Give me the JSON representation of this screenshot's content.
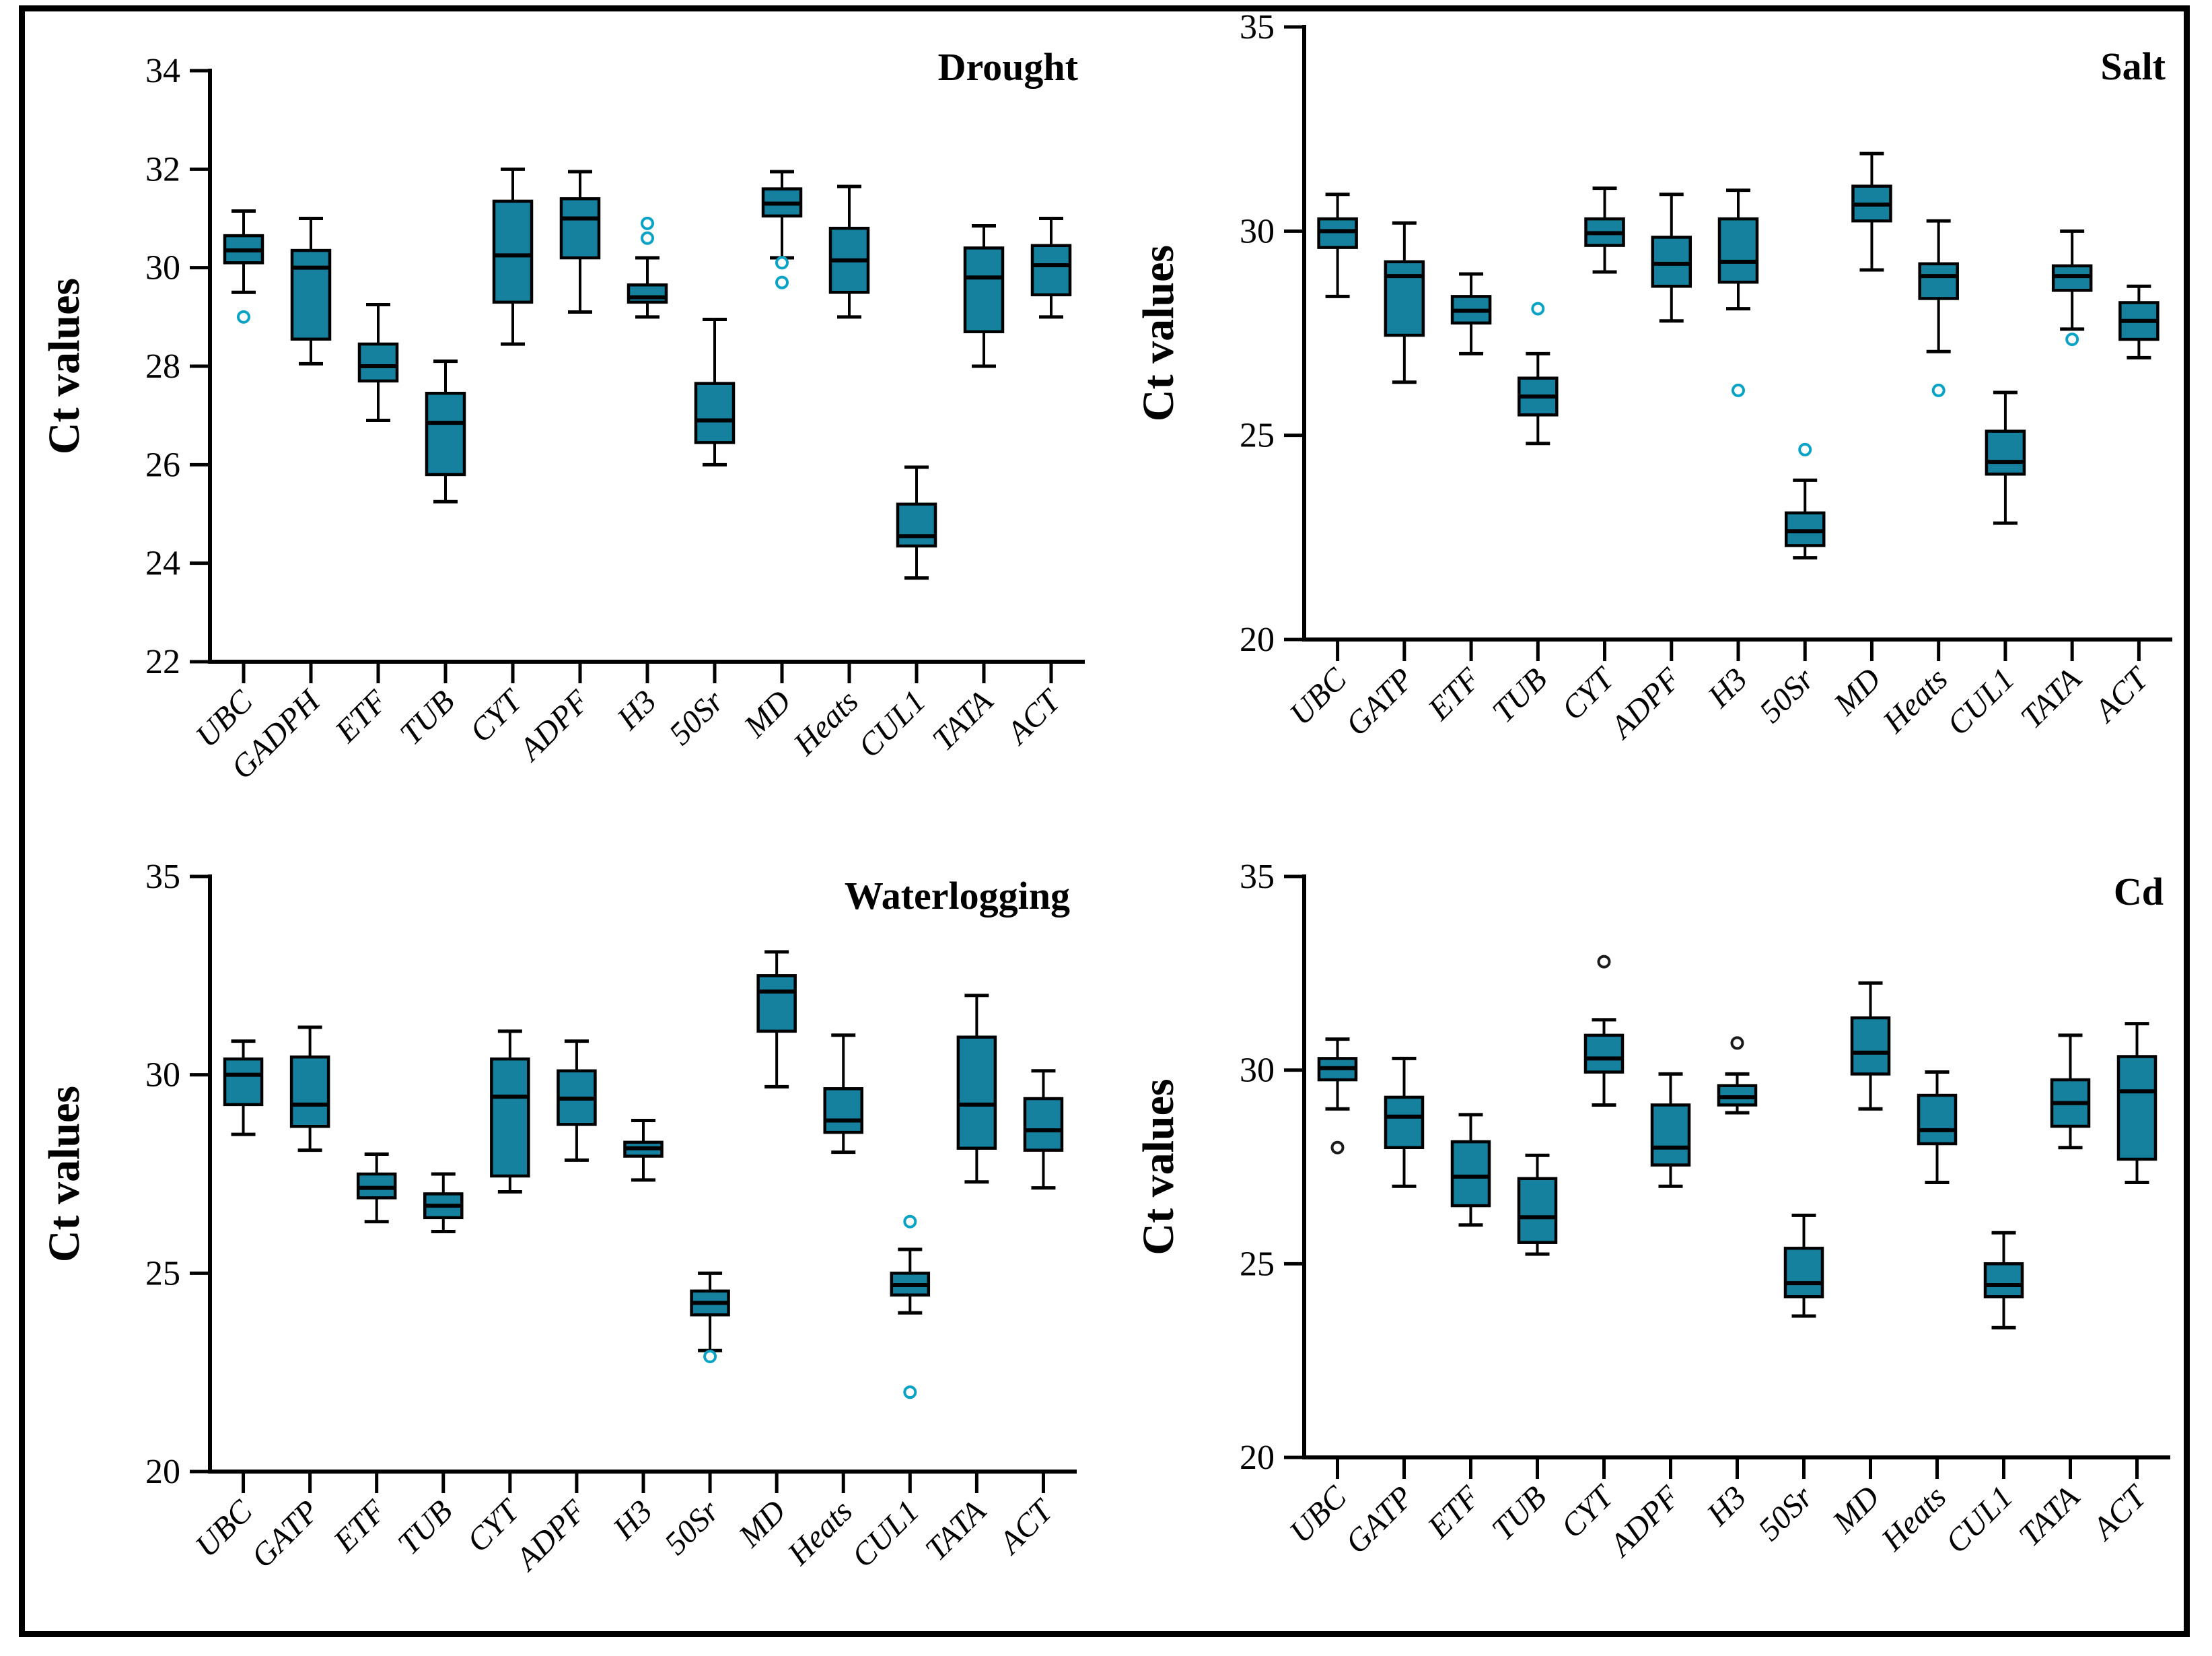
{
  "figure": {
    "description": "Four-panel box plot figure of qPCR Ct values for 13 candidate reference genes under four stress treatments",
    "background_color": "#ffffff",
    "border_color": "#000000",
    "box_fill": "#15819f",
    "box_stroke": "#000000",
    "outlier_teal": "#0aa3c6",
    "outlier_black": "#1a1a1a"
  },
  "chart_data": [
    {
      "id": "drought",
      "type": "box",
      "title": "Drought",
      "ylabel": "Ct values",
      "ylim": [
        22,
        34
      ],
      "yticks": [
        22,
        24,
        26,
        28,
        30,
        32,
        34
      ],
      "grid": false,
      "outlier_color": "teal",
      "categories": [
        "UBC",
        "GADPH",
        "ETF",
        "TUB",
        "CYT",
        "ADPF",
        "H3",
        "50Sr",
        "MD",
        "Heats",
        "CUL1",
        "TATA",
        "ACT"
      ],
      "stats": [
        {
          "lo": 29.5,
          "q1": 30.1,
          "med": 30.35,
          "q3": 30.65,
          "hi": 31.15,
          "out": [
            29.0
          ]
        },
        {
          "lo": 28.05,
          "q1": 28.55,
          "med": 30.0,
          "q3": 30.35,
          "hi": 31.0,
          "out": []
        },
        {
          "lo": 26.9,
          "q1": 27.7,
          "med": 28.0,
          "q3": 28.45,
          "hi": 29.25,
          "out": []
        },
        {
          "lo": 25.25,
          "q1": 25.8,
          "med": 26.85,
          "q3": 27.45,
          "hi": 28.1,
          "out": []
        },
        {
          "lo": 28.45,
          "q1": 29.3,
          "med": 30.25,
          "q3": 31.35,
          "hi": 32.0,
          "out": []
        },
        {
          "lo": 29.1,
          "q1": 30.2,
          "med": 31.0,
          "q3": 31.4,
          "hi": 31.95,
          "out": []
        },
        {
          "lo": 29.0,
          "q1": 29.3,
          "med": 29.4,
          "q3": 29.65,
          "hi": 30.2,
          "out": [
            30.6,
            30.9
          ]
        },
        {
          "lo": 26.0,
          "q1": 26.45,
          "med": 26.9,
          "q3": 27.65,
          "hi": 28.95,
          "out": []
        },
        {
          "lo": 30.2,
          "q1": 31.05,
          "med": 31.3,
          "q3": 31.6,
          "hi": 31.95,
          "out": [
            30.1,
            29.7
          ]
        },
        {
          "lo": 29.0,
          "q1": 29.5,
          "med": 30.15,
          "q3": 30.8,
          "hi": 31.65,
          "out": []
        },
        {
          "lo": 23.7,
          "q1": 24.35,
          "med": 24.55,
          "q3": 25.2,
          "hi": 25.95,
          "out": []
        },
        {
          "lo": 28.0,
          "q1": 28.7,
          "med": 29.8,
          "q3": 30.4,
          "hi": 30.85,
          "out": []
        },
        {
          "lo": 29.0,
          "q1": 29.45,
          "med": 30.05,
          "q3": 30.45,
          "hi": 31.0,
          "out": []
        }
      ]
    },
    {
      "id": "salt",
      "type": "box",
      "title": "Salt",
      "ylabel": "Ct values",
      "ylim": [
        20,
        35
      ],
      "yticks": [
        20,
        25,
        30,
        35
      ],
      "grid": false,
      "outlier_color": "teal",
      "categories": [
        "UBC",
        "GATP",
        "ETF",
        "TUB",
        "CYT",
        "ADPF",
        "H3",
        "50Sr",
        "MD",
        "Heats",
        "CUL1",
        "TATA",
        "ACT"
      ],
      "stats": [
        {
          "lo": 28.4,
          "q1": 29.6,
          "med": 30.0,
          "q3": 30.3,
          "hi": 30.9,
          "out": []
        },
        {
          "lo": 26.3,
          "q1": 27.45,
          "med": 28.9,
          "q3": 29.25,
          "hi": 30.2,
          "out": []
        },
        {
          "lo": 27.0,
          "q1": 27.75,
          "med": 28.05,
          "q3": 28.4,
          "hi": 28.95,
          "out": []
        },
        {
          "lo": 24.8,
          "q1": 25.5,
          "med": 25.95,
          "q3": 26.4,
          "hi": 27.0,
          "out": [
            28.1
          ]
        },
        {
          "lo": 29.0,
          "q1": 29.65,
          "med": 29.95,
          "q3": 30.3,
          "hi": 31.05,
          "out": []
        },
        {
          "lo": 27.8,
          "q1": 28.65,
          "med": 29.2,
          "q3": 29.85,
          "hi": 30.9,
          "out": []
        },
        {
          "lo": 28.1,
          "q1": 28.75,
          "med": 29.25,
          "q3": 30.3,
          "hi": 31.0,
          "out": [
            26.1
          ]
        },
        {
          "lo": 22.0,
          "q1": 22.3,
          "med": 22.65,
          "q3": 23.1,
          "hi": 23.9,
          "out": [
            24.65
          ]
        },
        {
          "lo": 29.05,
          "q1": 30.25,
          "med": 30.65,
          "q3": 31.1,
          "hi": 31.9,
          "out": []
        },
        {
          "lo": 27.05,
          "q1": 28.35,
          "med": 28.9,
          "q3": 29.2,
          "hi": 30.25,
          "out": [
            26.1
          ]
        },
        {
          "lo": 22.85,
          "q1": 24.05,
          "med": 24.35,
          "q3": 25.1,
          "hi": 26.05,
          "out": []
        },
        {
          "lo": 27.6,
          "q1": 28.55,
          "med": 28.9,
          "q3": 29.15,
          "hi": 30.0,
          "out": [
            27.35
          ]
        },
        {
          "lo": 26.9,
          "q1": 27.35,
          "med": 27.8,
          "q3": 28.25,
          "hi": 28.65,
          "out": []
        }
      ]
    },
    {
      "id": "waterlogging",
      "type": "box",
      "title": "Waterlogging",
      "ylabel": "Ct values",
      "ylim": [
        20,
        35
      ],
      "yticks": [
        20,
        25,
        30,
        35
      ],
      "grid": false,
      "outlier_color": "teal",
      "categories": [
        "UBC",
        "GATP",
        "ETF",
        "TUB",
        "CYT",
        "ADPF",
        "H3",
        "50Sr",
        "MD",
        "Heats",
        "CUL1",
        "TATA",
        "ACT"
      ],
      "stats": [
        {
          "lo": 28.5,
          "q1": 29.25,
          "med": 30.0,
          "q3": 30.4,
          "hi": 30.85,
          "out": []
        },
        {
          "lo": 28.1,
          "q1": 28.7,
          "med": 29.25,
          "q3": 30.45,
          "hi": 31.2,
          "out": []
        },
        {
          "lo": 26.3,
          "q1": 26.9,
          "med": 27.15,
          "q3": 27.5,
          "hi": 28.0,
          "out": []
        },
        {
          "lo": 26.05,
          "q1": 26.4,
          "med": 26.7,
          "q3": 27.0,
          "hi": 27.5,
          "out": []
        },
        {
          "lo": 27.05,
          "q1": 27.45,
          "med": 29.45,
          "q3": 30.4,
          "hi": 31.1,
          "out": []
        },
        {
          "lo": 27.85,
          "q1": 28.75,
          "med": 29.4,
          "q3": 30.1,
          "hi": 30.85,
          "out": []
        },
        {
          "lo": 27.35,
          "q1": 27.95,
          "med": 28.15,
          "q3": 28.3,
          "hi": 28.85,
          "out": []
        },
        {
          "lo": 23.05,
          "q1": 23.95,
          "med": 24.25,
          "q3": 24.55,
          "hi": 25.0,
          "out": [
            22.9
          ]
        },
        {
          "lo": 29.7,
          "q1": 31.1,
          "med": 32.1,
          "q3": 32.5,
          "hi": 33.1,
          "out": []
        },
        {
          "lo": 28.05,
          "q1": 28.55,
          "med": 28.85,
          "q3": 29.65,
          "hi": 31.0,
          "out": []
        },
        {
          "lo": 24.0,
          "q1": 24.45,
          "med": 24.7,
          "q3": 25.0,
          "hi": 25.6,
          "out": [
            26.3,
            22.0
          ]
        },
        {
          "lo": 27.3,
          "q1": 28.15,
          "med": 29.25,
          "q3": 30.95,
          "hi": 32.0,
          "out": []
        },
        {
          "lo": 27.15,
          "q1": 28.1,
          "med": 28.6,
          "q3": 29.4,
          "hi": 30.1,
          "out": []
        }
      ]
    },
    {
      "id": "cd",
      "type": "box",
      "title": "Cd",
      "ylabel": "Ct values",
      "ylim": [
        20,
        35
      ],
      "yticks": [
        20,
        25,
        30,
        35
      ],
      "grid": false,
      "outlier_color": "black",
      "categories": [
        "UBC",
        "GATP",
        "ETF",
        "TUB",
        "CYT",
        "ADPF",
        "H3",
        "50Sr",
        "MD",
        "Heats",
        "CUL1",
        "TATA",
        "ACT"
      ],
      "stats": [
        {
          "lo": 29.0,
          "q1": 29.75,
          "med": 30.05,
          "q3": 30.3,
          "hi": 30.8,
          "out": [
            28.0
          ]
        },
        {
          "lo": 27.0,
          "q1": 28.0,
          "med": 28.8,
          "q3": 29.3,
          "hi": 30.3,
          "out": []
        },
        {
          "lo": 26.0,
          "q1": 26.5,
          "med": 27.25,
          "q3": 28.15,
          "hi": 28.85,
          "out": []
        },
        {
          "lo": 25.25,
          "q1": 25.55,
          "med": 26.2,
          "q3": 27.2,
          "hi": 27.8,
          "out": []
        },
        {
          "lo": 29.1,
          "q1": 29.95,
          "med": 30.3,
          "q3": 30.9,
          "hi": 31.3,
          "out": [
            32.8
          ]
        },
        {
          "lo": 27.0,
          "q1": 27.55,
          "med": 28.0,
          "q3": 29.1,
          "hi": 29.9,
          "out": []
        },
        {
          "lo": 28.9,
          "q1": 29.1,
          "med": 29.3,
          "q3": 29.6,
          "hi": 29.9,
          "out": [
            30.7
          ]
        },
        {
          "lo": 23.65,
          "q1": 24.15,
          "med": 24.5,
          "q3": 25.4,
          "hi": 26.25,
          "out": []
        },
        {
          "lo": 29.0,
          "q1": 29.9,
          "med": 30.45,
          "q3": 31.35,
          "hi": 32.25,
          "out": []
        },
        {
          "lo": 27.1,
          "q1": 28.1,
          "med": 28.45,
          "q3": 29.35,
          "hi": 29.95,
          "out": []
        },
        {
          "lo": 23.35,
          "q1": 24.15,
          "med": 24.45,
          "q3": 25.0,
          "hi": 25.8,
          "out": []
        },
        {
          "lo": 28.0,
          "q1": 28.55,
          "med": 29.15,
          "q3": 29.75,
          "hi": 30.9,
          "out": []
        },
        {
          "lo": 27.1,
          "q1": 27.7,
          "med": 29.45,
          "q3": 30.35,
          "hi": 31.2,
          "out": []
        }
      ]
    }
  ]
}
